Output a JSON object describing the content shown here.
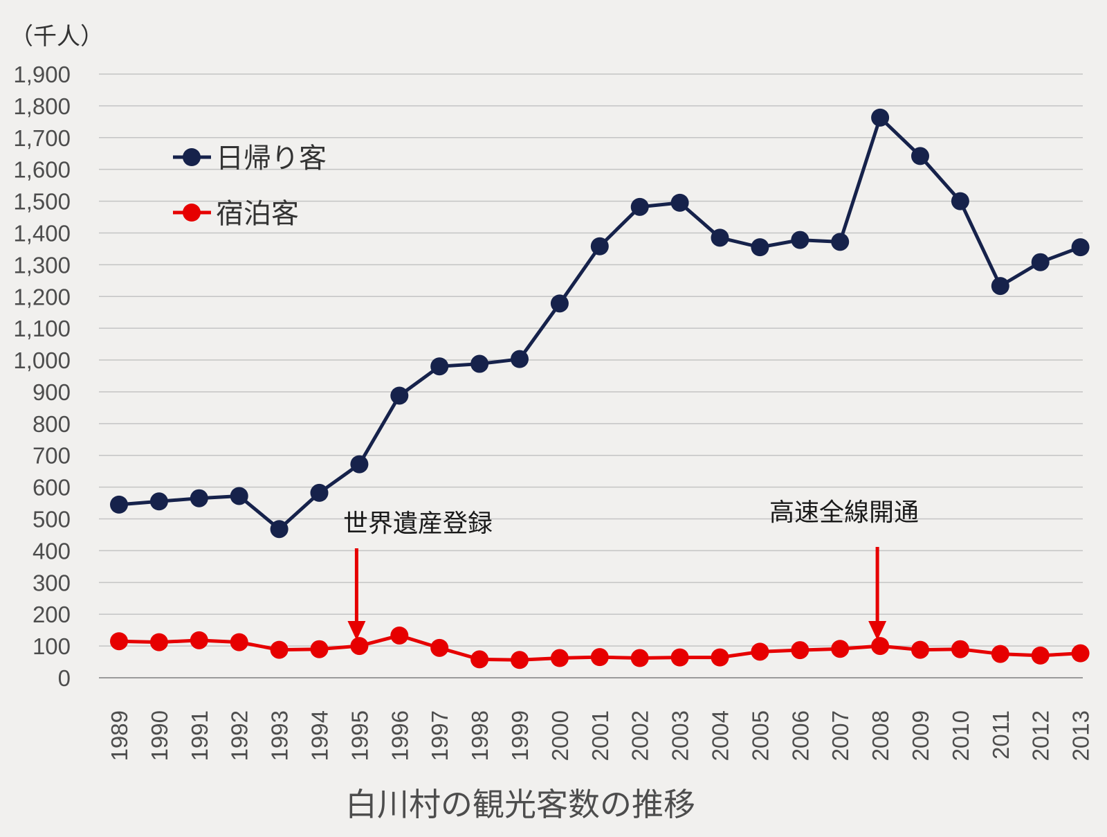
{
  "chart_data": {
    "type": "line",
    "title": "",
    "caption": "白川村の観光客数の推移",
    "ylabel": "（千人）",
    "xlabel": "",
    "ylim": [
      0,
      1900
    ],
    "ytick_step": 100,
    "yticks": [
      "0",
      "100",
      "200",
      "300",
      "400",
      "500",
      "600",
      "700",
      "800",
      "900",
      "1,000",
      "1,100",
      "1,200",
      "1,300",
      "1,400",
      "1,500",
      "1,600",
      "1,700",
      "1,800",
      "1,900"
    ],
    "grid": true,
    "legend_position": "top-left",
    "categories": [
      "1989",
      "1990",
      "1991",
      "1992",
      "1993",
      "1994",
      "1995",
      "1996",
      "1997",
      "1998",
      "1999",
      "2000",
      "2001",
      "2002",
      "2003",
      "2004",
      "2005",
      "2006",
      "2007",
      "2008",
      "2009",
      "2010",
      "2011",
      "2012",
      "2013"
    ],
    "series": [
      {
        "name": "日帰り客",
        "color": "#16224b",
        "values": [
          545,
          555,
          565,
          572,
          468,
          582,
          672,
          888,
          980,
          988,
          1003,
          1178,
          1358,
          1482,
          1495,
          1385,
          1355,
          1378,
          1372,
          1763,
          1642,
          1500,
          1233,
          1308,
          1355
        ]
      },
      {
        "name": "宿泊客",
        "color": "#e60000",
        "values": [
          115,
          112,
          118,
          112,
          88,
          90,
          100,
          133,
          94,
          58,
          56,
          62,
          65,
          62,
          64,
          64,
          82,
          87,
          91,
          100,
          88,
          90,
          75,
          70,
          77
        ]
      }
    ],
    "annotations": [
      {
        "text": "世界遺産登録",
        "x": "1995",
        "color": "#e60000"
      },
      {
        "text": "高速全線開通",
        "x": "2008",
        "color": "#e60000"
      }
    ]
  }
}
